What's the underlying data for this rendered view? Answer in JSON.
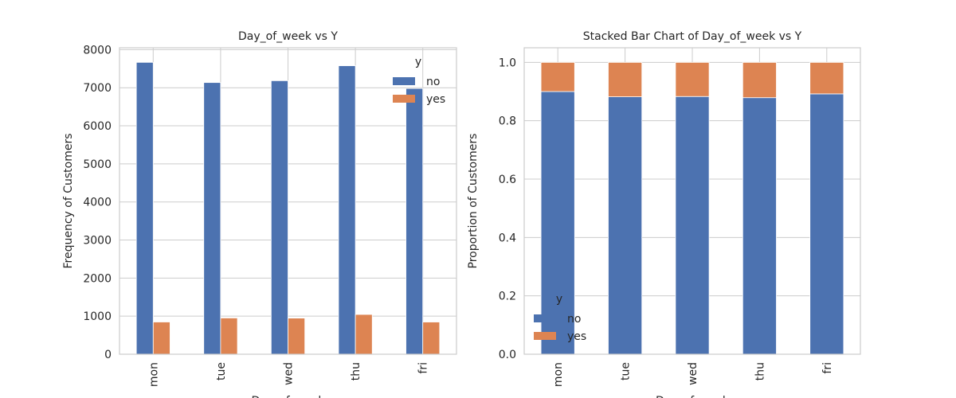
{
  "chart_data": [
    {
      "type": "bar",
      "title": "Day_of_week vs Y",
      "xlabel": "Day_of_week",
      "ylabel": "Frequency of Customers",
      "categories": [
        "mon",
        "tue",
        "wed",
        "thu",
        "fri"
      ],
      "series": [
        {
          "name": "no",
          "color": "#4c72b0",
          "values": [
            7667,
            7137,
            7185,
            7578,
            6981
          ]
        },
        {
          "name": "yes",
          "color": "#dd8452",
          "values": [
            847,
            953,
            949,
            1045,
            846
          ]
        }
      ],
      "ylim": [
        0,
        8050
      ],
      "yticks": [
        0,
        1000,
        2000,
        3000,
        4000,
        5000,
        6000,
        7000,
        8000
      ],
      "grid": true,
      "legend_title": "y",
      "legend": "upper right"
    },
    {
      "type": "stacked_bar",
      "title": "Stacked Bar Chart of Day_of_week vs Y",
      "xlabel": "Day_of_week",
      "ylabel": "Proportion of Customers",
      "categories": [
        "mon",
        "tue",
        "wed",
        "thu",
        "fri"
      ],
      "series": [
        {
          "name": "no",
          "color": "#4c72b0",
          "values": [
            0.9,
            0.882,
            0.883,
            0.879,
            0.892
          ]
        },
        {
          "name": "yes",
          "color": "#dd8452",
          "values": [
            0.1,
            0.118,
            0.117,
            0.121,
            0.108
          ]
        }
      ],
      "ylim": [
        0,
        1.05
      ],
      "yticks": [
        {
          "value": 0,
          "label": "0.0"
        },
        {
          "value": 0.2,
          "label": "0.2"
        },
        {
          "value": 0.4,
          "label": "0.4"
        },
        {
          "value": 0.6,
          "label": "0.6"
        },
        {
          "value": 0.8,
          "label": "0.8"
        },
        {
          "value": 1,
          "label": "1.0"
        }
      ],
      "grid": true,
      "legend_title": "y",
      "legend": "lower left"
    }
  ]
}
